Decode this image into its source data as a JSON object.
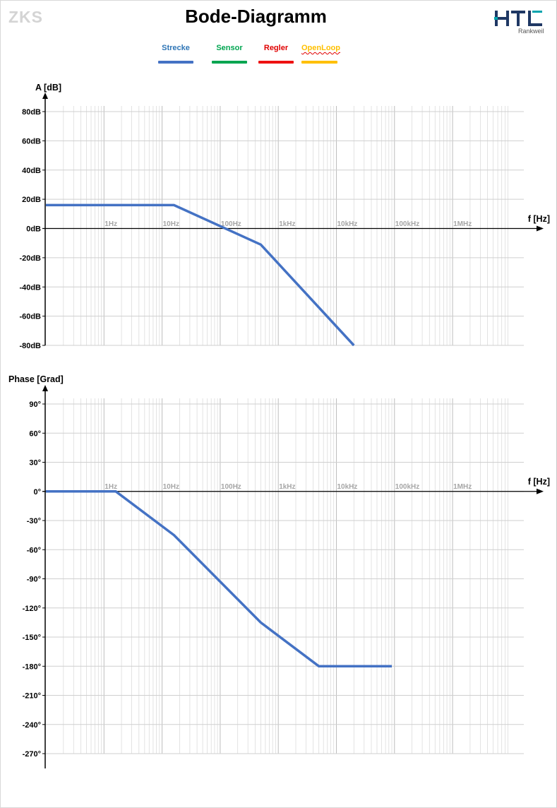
{
  "header": {
    "zks": "ZKS",
    "title": "Bode-Diagramm",
    "logo_text": "HTL",
    "logo_sub": "Rankweil"
  },
  "colors": {
    "strecke": "#4472c4",
    "sensor": "#00a550",
    "regler": "#ee1111",
    "openloop": "#ffc000",
    "grid": "#d0d0d0",
    "axis": "#000000",
    "freq_label": "#a6a6a6"
  },
  "legend": [
    {
      "id": "strecke",
      "label": "Strecke",
      "label_color": "#2e75b6",
      "color": "#4472c4"
    },
    {
      "id": "sensor",
      "label": "Sensor",
      "label_color": "#00a550",
      "color": "#00a550"
    },
    {
      "id": "regler",
      "label": "Regler",
      "label_color": "#e00000",
      "color": "#ee1111"
    },
    {
      "id": "openloop",
      "label": "OpenLoop",
      "label_color": "#ffc000",
      "color": "#ffc000"
    }
  ],
  "chart_data": [
    {
      "type": "line",
      "x_scale": "log",
      "xlabel": "f [Hz]",
      "ylabel": "A [dB]",
      "xlim": [
        0.1,
        10000000
      ],
      "ylim": [
        -80,
        80
      ],
      "x_ticks": [
        {
          "value": 1,
          "label": "1Hz"
        },
        {
          "value": 10,
          "label": "10Hz"
        },
        {
          "value": 100,
          "label": "100Hz"
        },
        {
          "value": 1000,
          "label": "1kHz"
        },
        {
          "value": 10000,
          "label": "10kHz"
        },
        {
          "value": 100000,
          "label": "100kHz"
        },
        {
          "value": 1000000,
          "label": "1MHz"
        }
      ],
      "y_ticks": [
        {
          "value": 80,
          "label": "80dB"
        },
        {
          "value": 60,
          "label": "60dB"
        },
        {
          "value": 40,
          "label": "40dB"
        },
        {
          "value": 20,
          "label": "20dB"
        },
        {
          "value": 0,
          "label": "0dB"
        },
        {
          "value": -20,
          "label": "-20dB"
        },
        {
          "value": -40,
          "label": "-40dB"
        },
        {
          "value": -60,
          "label": "-60dB"
        },
        {
          "value": -80,
          "label": "-80dB"
        }
      ],
      "grid": true,
      "series": [
        {
          "id": "strecke",
          "color": "#4472c4",
          "x": [
            0.1,
            16,
            500,
            20000
          ],
          "y": [
            16,
            16,
            -11,
            -80
          ]
        }
      ]
    },
    {
      "type": "line",
      "x_scale": "log",
      "xlabel": "f [Hz]",
      "ylabel": "Phase [Grad]",
      "xlim": [
        0.1,
        10000000
      ],
      "ylim": [
        -270,
        90
      ],
      "x_ticks": [
        {
          "value": 1,
          "label": "1Hz"
        },
        {
          "value": 10,
          "label": "10Hz"
        },
        {
          "value": 100,
          "label": "100Hz"
        },
        {
          "value": 1000,
          "label": "1kHz"
        },
        {
          "value": 10000,
          "label": "10kHz"
        },
        {
          "value": 100000,
          "label": "100kHz"
        },
        {
          "value": 1000000,
          "label": "1MHz"
        }
      ],
      "y_ticks": [
        {
          "value": 90,
          "label": "90°"
        },
        {
          "value": 60,
          "label": "60°"
        },
        {
          "value": 30,
          "label": "30°"
        },
        {
          "value": 0,
          "label": "0°"
        },
        {
          "value": -30,
          "label": "-30°"
        },
        {
          "value": -60,
          "label": "-60°"
        },
        {
          "value": -90,
          "label": "-90°"
        },
        {
          "value": -120,
          "label": "-120°"
        },
        {
          "value": -150,
          "label": "-150°"
        },
        {
          "value": -180,
          "label": "-180°"
        },
        {
          "value": -210,
          "label": "-210°"
        },
        {
          "value": -240,
          "label": "-240°"
        },
        {
          "value": -270,
          "label": "-270°"
        }
      ],
      "grid": true,
      "series": [
        {
          "id": "strecke",
          "color": "#4472c4",
          "x": [
            0.1,
            1.6,
            16,
            500,
            5000,
            90000
          ],
          "y": [
            0,
            0,
            -45,
            -135,
            -180,
            -180
          ]
        }
      ]
    }
  ]
}
